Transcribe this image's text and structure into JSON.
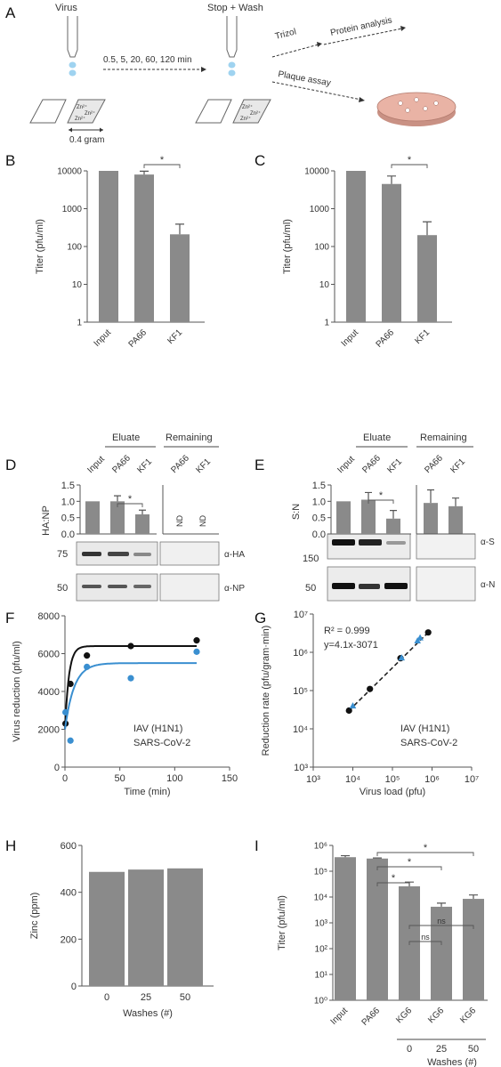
{
  "panels": {
    "A": {
      "label": "A",
      "virus_label": "Virus",
      "stopwash_label": "Stop + Wash",
      "times_label": "0.5, 5, 20, 60, 120 min",
      "zn_labels": [
        "Zn²⁺",
        "Zn²⁺",
        "Zn²⁺"
      ],
      "weight_label": "0.4 gram",
      "trizol_label": "Trizol",
      "protein_label": "Protein analysis",
      "plaque_label": "Plaque assay"
    },
    "D": {
      "label": "D",
      "group_eluate": "Eluate",
      "group_remaining": "Remaining",
      "lanes": [
        "Input",
        "PA66",
        "KF1",
        "PA66",
        "KF1"
      ],
      "ylabel": "HA:NP",
      "yticks": [
        "0.0",
        "0.5",
        "1.0",
        "1.5"
      ],
      "nd_labels": [
        "ND",
        "ND"
      ],
      "sig": "*",
      "blot1_marker": "75",
      "blot1_label": "α-HA",
      "blot2_marker": "50",
      "blot2_label": "α-NP"
    },
    "E": {
      "label": "E",
      "group_eluate": "Eluate",
      "group_remaining": "Remaining",
      "lanes": [
        "Input",
        "PA66",
        "KF1",
        "PA66",
        "KF1"
      ],
      "ylabel": "S:N",
      "yticks": [
        "0.0",
        "0.5",
        "1.0",
        "1.5"
      ],
      "sig": "*",
      "blot1_marker": "150",
      "blot1_label": "α-S",
      "blot2_marker": "50",
      "blot2_label": "α-N"
    }
  },
  "chart_data": [
    {
      "panel": "B",
      "label": "B",
      "type": "bar",
      "categories": [
        "Input",
        "PA66",
        "KF1"
      ],
      "values": [
        10000,
        8000,
        210
      ],
      "errors": [
        0,
        1800,
        180
      ],
      "ylabel": "Titer (pfu/ml)",
      "yscale": "log",
      "ylim": [
        1,
        10000
      ],
      "yticks": [
        "1",
        "10",
        "100",
        "1000",
        "10000"
      ],
      "significance": [
        {
          "from": 1,
          "to": 2,
          "text": "*"
        }
      ]
    },
    {
      "panel": "C",
      "label": "C",
      "type": "bar",
      "categories": [
        "Input",
        "PA66",
        "KF1"
      ],
      "values": [
        10000,
        4500,
        200
      ],
      "errors": [
        0,
        2800,
        250
      ],
      "ylabel": "Titer (pfu/ml)",
      "yscale": "log",
      "ylim": [
        1,
        10000
      ],
      "yticks": [
        "1",
        "10",
        "100",
        "1000",
        "10000"
      ],
      "significance": [
        {
          "from": 1,
          "to": 2,
          "text": "*"
        }
      ]
    },
    {
      "panel": "D",
      "type": "bar",
      "categories": [
        "Input",
        "PA66",
        "KF1"
      ],
      "values": [
        1.0,
        1.0,
        0.6
      ],
      "errors": [
        0,
        0.17,
        0.13
      ],
      "ylim": [
        0,
        1.5
      ]
    },
    {
      "panel": "E",
      "type": "bar",
      "categories": [
        "Input",
        "PA66",
        "KF1",
        "PA66",
        "KF1"
      ],
      "values": [
        1.0,
        1.05,
        0.47,
        0.95,
        0.85
      ],
      "errors": [
        0,
        0.22,
        0.25,
        0.4,
        0.25
      ],
      "ylim": [
        0,
        1.5
      ]
    },
    {
      "panel": "F",
      "label": "F",
      "type": "scatter",
      "xlabel": "Time (min)",
      "ylabel": "Virus reduction (pfu/ml)",
      "xlim": [
        0,
        150
      ],
      "ylim": [
        0,
        8000
      ],
      "xticks": [
        "0",
        "50",
        "100",
        "150"
      ],
      "yticks": [
        "0",
        "2000",
        "4000",
        "6000",
        "8000"
      ],
      "series": [
        {
          "name": "IAV (H1N1)",
          "color": "#111111",
          "x": [
            0.5,
            5,
            20,
            60,
            120
          ],
          "y": [
            2300,
            4400,
            5900,
            6400,
            6700
          ],
          "fit_plateau": 6400,
          "fit_y0": 2000,
          "fit_k": 0.28
        },
        {
          "name": "SARS-CoV-2",
          "color": "#3a8fd0",
          "x": [
            0.5,
            5,
            20,
            60,
            120
          ],
          "y": [
            2900,
            1400,
            5300,
            4700,
            6100
          ],
          "fit_plateau": 5500,
          "fit_y0": 2000,
          "fit_k": 0.12
        }
      ]
    },
    {
      "panel": "G",
      "label": "G",
      "type": "scatter",
      "xlabel": "Virus load (pfu)",
      "ylabel": "Reduction rate (pfu/gram·min)",
      "xscale": "log",
      "yscale": "log",
      "xlim": [
        1000,
        10000000
      ],
      "ylim": [
        1000,
        10000000
      ],
      "xticks": [
        "10³",
        "10⁴",
        "10⁵",
        "10⁶",
        "10⁷"
      ],
      "yticks": [
        "10³",
        "10⁴",
        "10⁵",
        "10⁶",
        "10⁷"
      ],
      "annotations": [
        "R² = 0.999",
        "y=4.1x-3071"
      ],
      "series": [
        {
          "name": "IAV (H1N1)",
          "color": "#111111",
          "x": [
            8000,
            27000,
            160000,
            800000
          ],
          "y": [
            30000,
            110000,
            700000,
            3300000
          ]
        },
        {
          "name": "SARS-CoV-2",
          "color": "#3a8fd0",
          "x": [
            10000,
            170000,
            430000,
            500000
          ],
          "y": [
            40000,
            720000,
            2000000,
            2400000
          ]
        }
      ]
    },
    {
      "panel": "H",
      "label": "H",
      "type": "bar",
      "categories": [
        "0",
        "25",
        "50"
      ],
      "values": [
        487,
        497,
        502
      ],
      "xlabel": "Washes (#)",
      "ylabel": "Zinc (ppm)",
      "ylim": [
        0,
        600
      ],
      "yticks": [
        "0",
        "200",
        "400",
        "600"
      ]
    },
    {
      "panel": "I",
      "label": "I",
      "type": "bar",
      "categories": [
        "Input",
        "PA66",
        "KG6",
        "KG6",
        "KG6"
      ],
      "washes": [
        "0",
        "25",
        "50"
      ],
      "values": [
        350000,
        310000,
        26000,
        4200,
        8500
      ],
      "errors": [
        50000,
        15000,
        12000,
        1600,
        3500
      ],
      "xlabel": "Washes (#)",
      "ylabel": "Titer (pfu/ml)",
      "yscale": "log",
      "ylim": [
        1,
        1000000
      ],
      "yticks": [
        "10⁰",
        "10¹",
        "10²",
        "10³",
        "10⁴",
        "10⁵",
        "10⁶"
      ],
      "significance": [
        {
          "from": 1,
          "to": 4,
          "text": "*"
        },
        {
          "from": 1,
          "to": 3,
          "text": "*"
        },
        {
          "from": 1,
          "to": 2,
          "text": "*"
        },
        {
          "from": 2,
          "to": 4,
          "text": "ns"
        },
        {
          "from": 2,
          "to": 3,
          "text": "ns"
        }
      ]
    }
  ]
}
